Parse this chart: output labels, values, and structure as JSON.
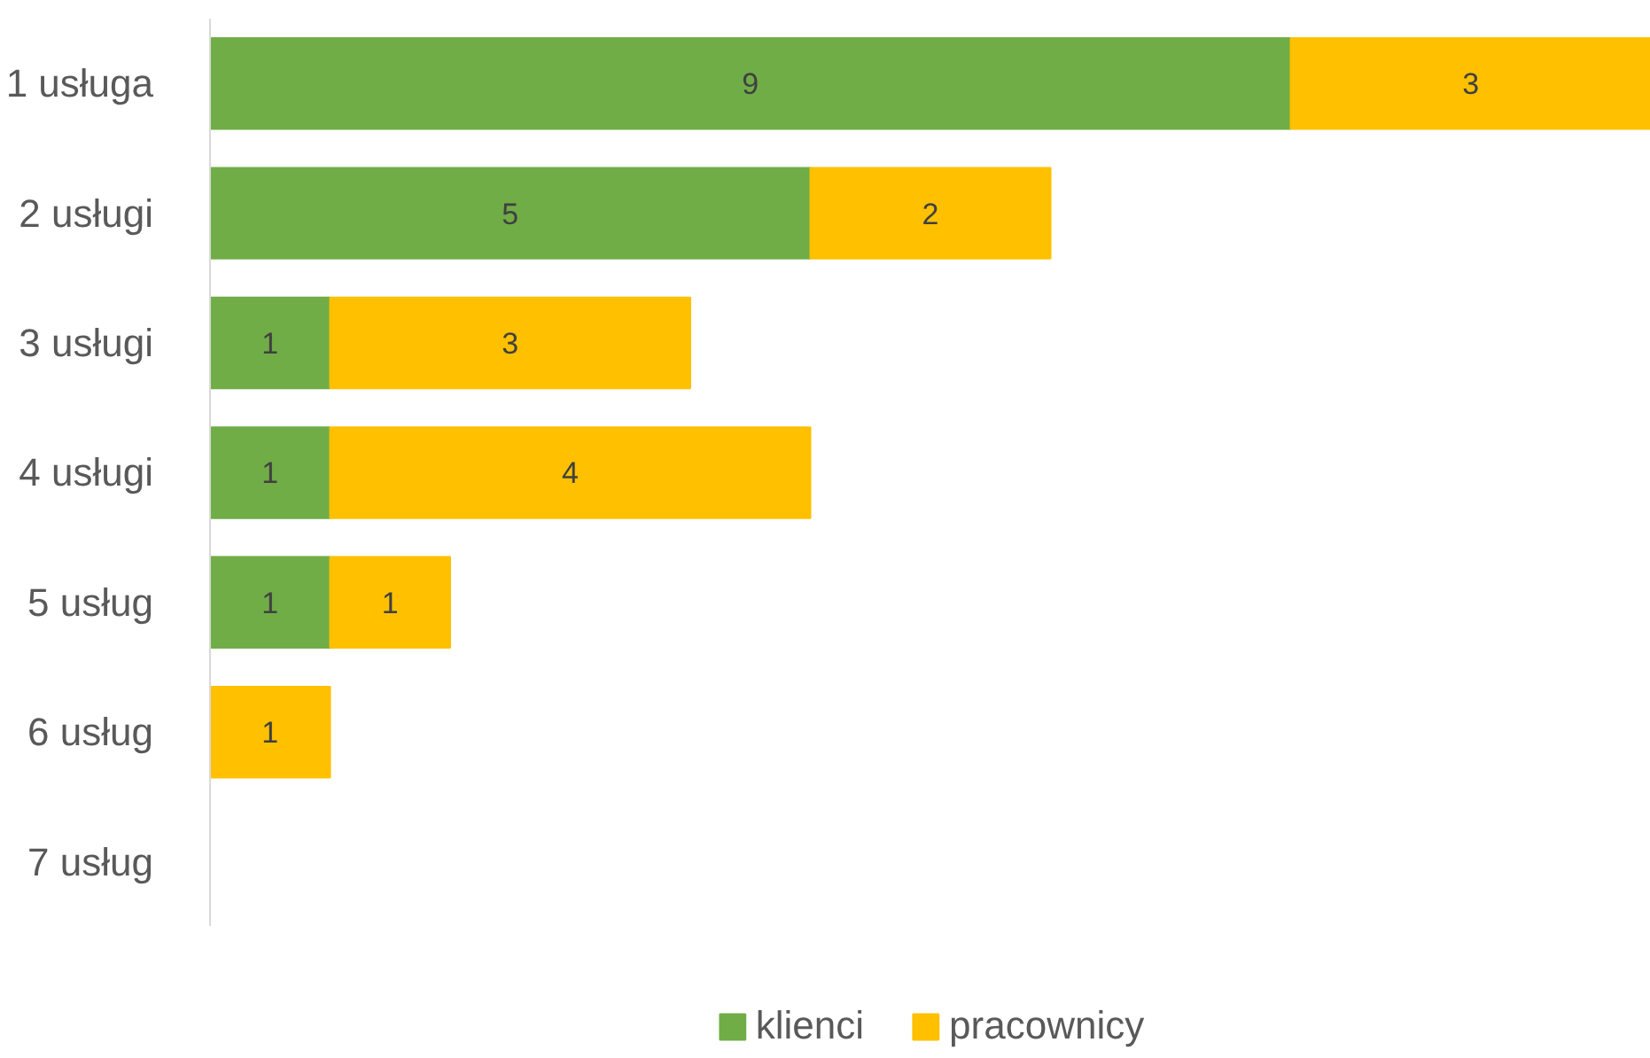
{
  "chart_data": {
    "type": "bar",
    "orientation": "horizontal",
    "stacked": true,
    "data_labels": true,
    "legend": "bottom",
    "grid": false,
    "categories": [
      "1 usługa",
      "2 usługi",
      "3 usługi",
      "4 usługi",
      "5 usług",
      "6 usług",
      "7 usług"
    ],
    "series": [
      {
        "name": "klienci",
        "color": "#70ad47",
        "values": [
          9,
          5,
          1,
          1,
          1,
          null,
          null
        ]
      },
      {
        "name": "pracownicy",
        "color": "#ffc000",
        "values": [
          3,
          2,
          3,
          4,
          1,
          1,
          null
        ]
      }
    ]
  }
}
